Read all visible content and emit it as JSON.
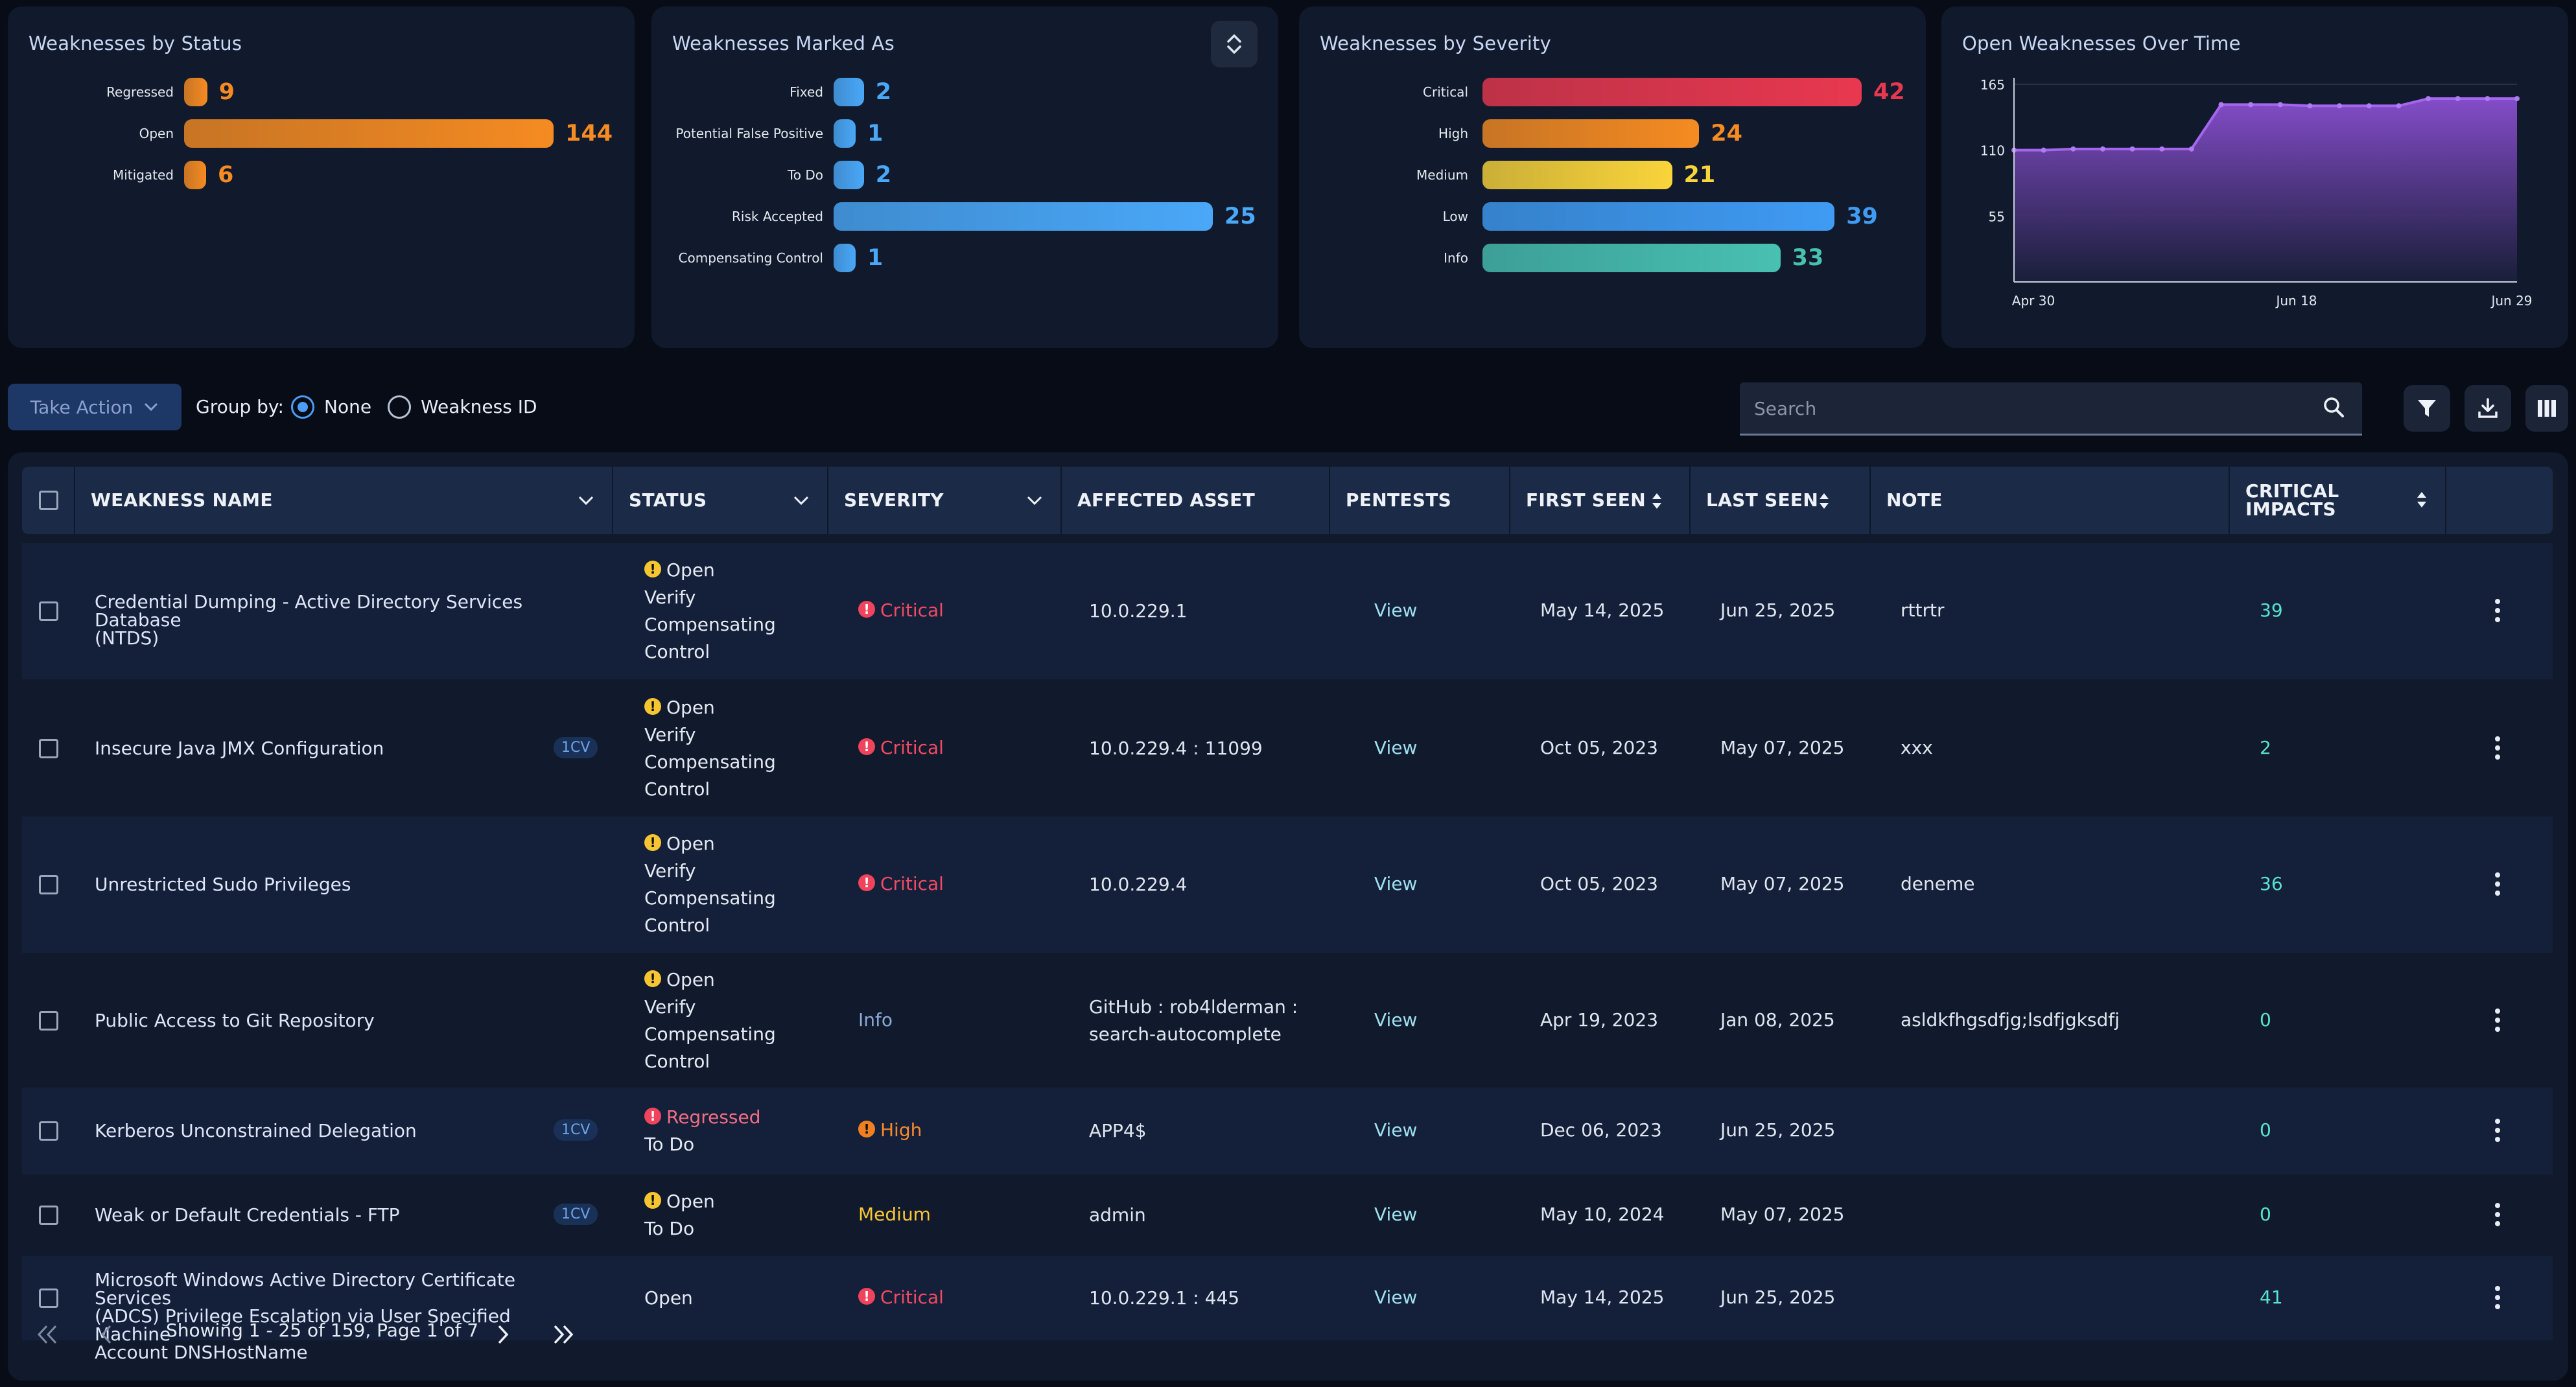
{
  "cards": {
    "status": {
      "title": "Weaknesses by Status",
      "items": [
        {
          "label": "Regressed",
          "value": 9
        },
        {
          "label": "Open",
          "value": 144
        },
        {
          "label": "Mitigated",
          "value": 6
        }
      ],
      "color": "#f58b22"
    },
    "marked": {
      "title": "Weaknesses Marked As",
      "items": [
        {
          "label": "Fixed",
          "value": 2
        },
        {
          "label": "Potential False Positive",
          "value": 1
        },
        {
          "label": "To Do",
          "value": 2
        },
        {
          "label": "Risk Accepted",
          "value": 25
        },
        {
          "label": "Compensating Control",
          "value": 1
        }
      ],
      "color": "#4aa8f8"
    },
    "severity": {
      "title": "Weaknesses by Severity",
      "items": [
        {
          "label": "Critical",
          "value": 42,
          "color": "#e8384f"
        },
        {
          "label": "High",
          "value": 24,
          "color": "#f58b22"
        },
        {
          "label": "Medium",
          "value": 21,
          "color": "#f9d43a"
        },
        {
          "label": "Low",
          "value": 39,
          "color": "#3f9bf3"
        },
        {
          "label": "Info",
          "value": 33,
          "color": "#48c0b2"
        }
      ]
    },
    "over_time": {
      "title": "Open Weaknesses Over Time"
    }
  },
  "chart_data": {
    "type": "area",
    "title": "Open Weaknesses Over Time",
    "x_ticks": [
      "Apr 30",
      "Jun 18",
      "Jun 29"
    ],
    "y_ticks": [
      55,
      110,
      165
    ],
    "ylim": [
      0,
      165
    ],
    "values": [
      110,
      110,
      111,
      111,
      111,
      111,
      111,
      148,
      148,
      148,
      147,
      147,
      147,
      147,
      153,
      153,
      153,
      153
    ],
    "color": "#8a4fd1"
  },
  "toolbar": {
    "take_action": "Take Action",
    "group_by": "Group by:",
    "opt_none": "None",
    "opt_weakness": "Weakness ID",
    "search_placeholder": "Search"
  },
  "table": {
    "headers": {
      "name": "WEAKNESS NAME",
      "status": "STATUS",
      "severity": "SEVERITY",
      "asset": "AFFECTED ASSET",
      "pentests": "PENTESTS",
      "first_seen": "FIRST SEEN",
      "last_seen": "LAST SEEN",
      "note": "NOTE",
      "impacts_1": "CRITICAL",
      "impacts_2": "IMPACTS"
    },
    "rows": [
      {
        "name_1": "Credential Dumping - Active Directory Services Database",
        "name_2": "(NTDS)",
        "badge": "",
        "status": [
          "Open",
          "Verify",
          "Compensating",
          "Control"
        ],
        "severity": "Critical",
        "asset_1": "10.0.229.1",
        "asset_2": "",
        "pentests": "View",
        "first_seen": "May 14, 2025",
        "last_seen": "Jun 25, 2025",
        "note": "rttrtr",
        "impacts": "39"
      },
      {
        "name_1": "Insecure Java JMX Configuration",
        "name_2": "",
        "badge": "1CV",
        "status": [
          "Open",
          "Verify",
          "Compensating",
          "Control"
        ],
        "severity": "Critical",
        "asset_1": "10.0.229.4 : 11099",
        "asset_2": "",
        "pentests": "View",
        "first_seen": "Oct 05, 2023",
        "last_seen": "May 07, 2025",
        "note": "xxx",
        "impacts": "2"
      },
      {
        "name_1": "Unrestricted Sudo Privileges",
        "name_2": "",
        "badge": "",
        "status": [
          "Open",
          "Verify",
          "Compensating",
          "Control"
        ],
        "severity": "Critical",
        "asset_1": "10.0.229.4",
        "asset_2": "",
        "pentests": "View",
        "first_seen": "Oct 05, 2023",
        "last_seen": "May 07, 2025",
        "note": "deneme",
        "impacts": "36"
      },
      {
        "name_1": "Public Access to Git Repository",
        "name_2": "",
        "badge": "",
        "status": [
          "Open",
          "Verify",
          "Compensating",
          "Control"
        ],
        "severity": "Info",
        "asset_1": "GitHub : rob4lderman :",
        "asset_2": "search-autocomplete",
        "pentests": "View",
        "first_seen": "Apr 19, 2023",
        "last_seen": "Jan 08, 2025",
        "note": "asldkfhgsdfjg;lsdfjgksdfj",
        "impacts": "0"
      },
      {
        "name_1": "Kerberos Unconstrained Delegation",
        "name_2": "",
        "badge": "1CV",
        "status": [
          "Regressed",
          "To Do"
        ],
        "severity": "High",
        "asset_1": "APP4$",
        "asset_2": "",
        "pentests": "View",
        "first_seen": "Dec 06, 2023",
        "last_seen": "Jun 25, 2025",
        "note": "",
        "impacts": "0"
      },
      {
        "name_1": "Weak or Default Credentials - FTP",
        "name_2": "",
        "badge": "1CV",
        "status": [
          "Open",
          "To Do"
        ],
        "severity": "Medium",
        "asset_1": "admin",
        "asset_2": "",
        "pentests": "View",
        "first_seen": "May 10, 2024",
        "last_seen": "May 07, 2025",
        "note": "",
        "impacts": "0"
      },
      {
        "name_1": "Microsoft Windows Active Directory Certificate Services",
        "name_2": "(ADCS) Privilege Escalation via User Specified Machine",
        "name_3": "Account DNSHostName",
        "badge": "",
        "status": [
          "Open"
        ],
        "severity": "Critical",
        "asset_1": "10.0.229.1 : 445",
        "asset_2": "",
        "pentests": "View",
        "first_seen": "May 14, 2025",
        "last_seen": "Jun 25, 2025",
        "note": "",
        "impacts": "41"
      }
    ]
  },
  "pager": {
    "text": "Showing 1 - 25 of 159, Page 1 of 7"
  }
}
